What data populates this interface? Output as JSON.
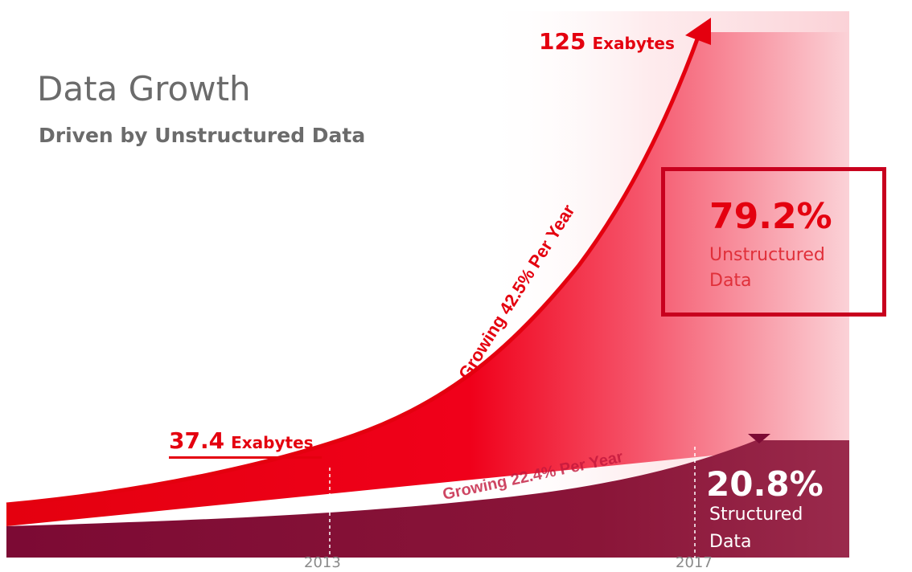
{
  "header": {
    "title": "Data Growth",
    "subtitle": "Driven by Unstructured Data"
  },
  "callouts": {
    "top_value": "125",
    "top_unit": "Exabytes",
    "mid_value": "37.4",
    "mid_unit": "Exabytes",
    "growth_unstructured": "Growing 42.5% Per Year",
    "growth_structured": "Growing 22.4% Per Year"
  },
  "share": {
    "unstructured_pct": "79.2%",
    "unstructured_line1": "Unstructured",
    "unstructured_line2": "Data",
    "structured_pct": "20.8%",
    "structured_line1": "Structured",
    "structured_line2": "Data"
  },
  "colors": {
    "accent_red": "#e4000f",
    "structured_maroon": "#8a1538",
    "box_border": "#c8001e",
    "title_gray": "#6b6b6b"
  },
  "chart_data": {
    "type": "area",
    "title": "Data Growth",
    "subtitle": "Driven by Unstructured Data",
    "x": [
      2013,
      2017
    ],
    "x_tick_labels": [
      "2013",
      "2017"
    ],
    "series": [
      {
        "name": "Unstructured Data",
        "growth_rate": "42.5% Per Year",
        "share_2017": 79.2
      },
      {
        "name": "Structured Data",
        "growth_rate": "22.4% Per Year",
        "share_2017": 20.8
      }
    ],
    "totals": [
      {
        "x": 2013,
        "value": 37.4,
        "unit": "Exabytes"
      },
      {
        "x": 2017,
        "value": 125,
        "unit": "Exabytes"
      }
    ]
  }
}
